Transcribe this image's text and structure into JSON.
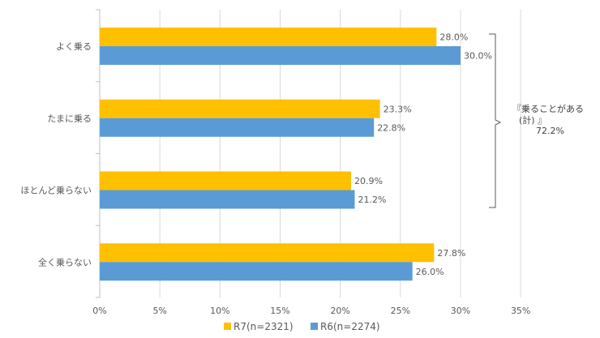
{
  "chart_data": {
    "type": "bar",
    "orientation": "horizontal",
    "categories": [
      "よく乗る",
      "たまに乗る",
      "ほとんど乗らない",
      "全く乗らない"
    ],
    "series": [
      {
        "name": "R7(n=2321)",
        "color": "#FFC000",
        "values": [
          28.0,
          23.3,
          20.9,
          27.8
        ]
      },
      {
        "name": "R6(n=2274)",
        "color": "#5B9BD5",
        "values": [
          30.0,
          22.8,
          21.2,
          26.0
        ]
      }
    ],
    "xlim": [
      0,
      35
    ],
    "xticks": [
      0,
      5,
      10,
      15,
      20,
      25,
      30,
      35
    ],
    "tick_suffix": "%",
    "value_suffix": "%",
    "grid": "vertical",
    "legend_position": "bottom",
    "annotation": {
      "line1": "『乗ることがある",
      "line2": "(計) 』",
      "line3": "72.2%"
    }
  }
}
